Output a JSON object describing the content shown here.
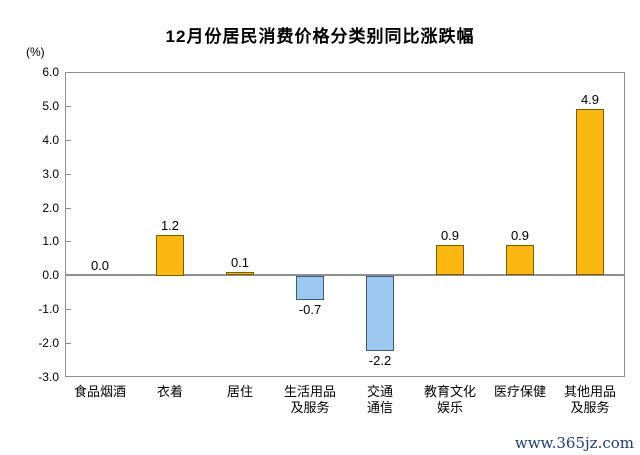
{
  "title": "12月份居民消费价格分类别同比涨跌幅",
  "unit_label": "(%)",
  "watermark": "www.365jz.com",
  "colors": {
    "positive_fill": "#FBB812",
    "positive_border": "#7a5c00",
    "negative_fill": "#9DC9F1",
    "negative_border": "#3d5a78",
    "axis_gray": "#8f8f8f",
    "watermark_blue": "#1e3c78"
  },
  "chart_data": {
    "type": "bar",
    "title": "12月份居民消费价格分类别同比涨跌幅",
    "ylabel": "(%)",
    "categories": [
      "食品烟酒",
      "衣着",
      "居住",
      "生活用品及服务",
      "交通通信",
      "教育文化娱乐",
      "医疗保健",
      "其他用品及服务"
    ],
    "category_lines": [
      [
        "食品烟酒"
      ],
      [
        "衣着"
      ],
      [
        "居住"
      ],
      [
        "生活用品",
        "及服务"
      ],
      [
        "交通",
        "通信"
      ],
      [
        "教育文化",
        "娱乐"
      ],
      [
        "医疗保健"
      ],
      [
        "其他用品",
        "及服务"
      ]
    ],
    "values": [
      0.0,
      1.2,
      0.1,
      -0.7,
      -2.2,
      0.9,
      0.9,
      4.9
    ],
    "labels": [
      "0.0",
      "1.2",
      "0.1",
      "-0.7",
      "-2.2",
      "0.9",
      "0.9",
      "4.9"
    ],
    "ylim": [
      -3.0,
      6.0
    ],
    "ytick_step": 1.0,
    "yticks": [
      "6.0",
      "5.0",
      "4.0",
      "3.0",
      "2.0",
      "1.0",
      "0.0",
      "-1.0",
      "-2.0",
      "-3.0"
    ],
    "grid": false,
    "legend": "none",
    "bar_color_rule": "positive=gold, negative=light-blue"
  }
}
